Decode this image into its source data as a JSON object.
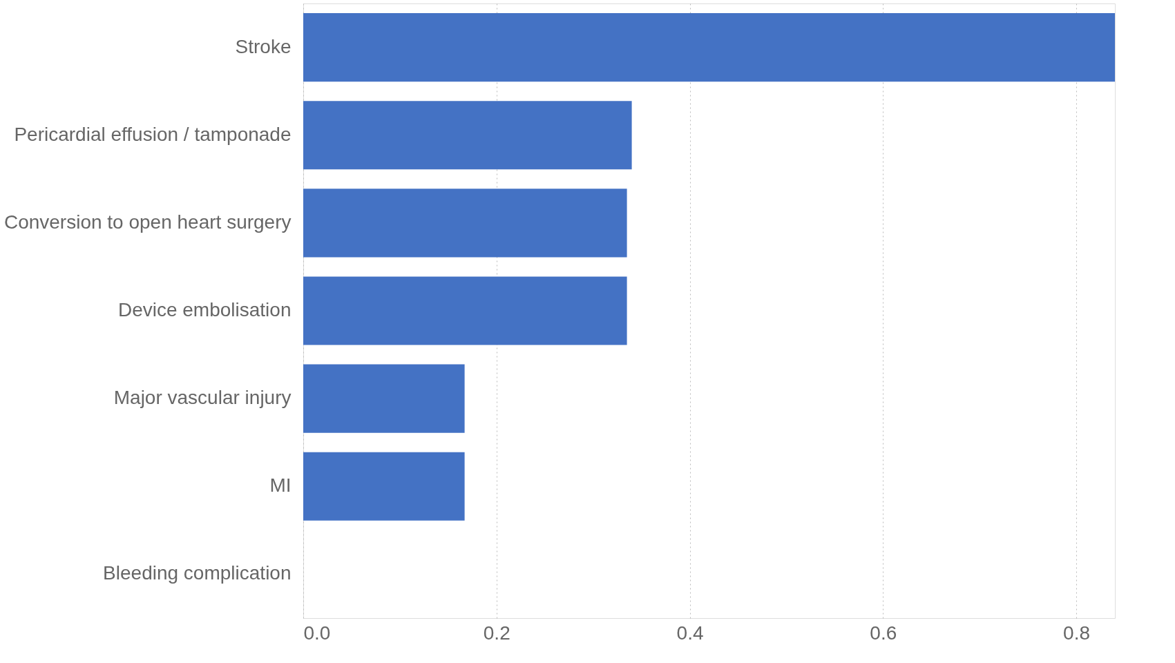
{
  "chart_data": {
    "type": "bar",
    "orientation": "horizontal",
    "categories": [
      "Stroke",
      "Pericardial effusion / tamponade",
      "Conversion to open heart surgery",
      "Device embolisation",
      "Major vascular injury",
      "MI",
      "Bleeding complication"
    ],
    "values": [
      0.84,
      0.34,
      0.335,
      0.335,
      0.167,
      0.167,
      0
    ],
    "color": "#4472c4",
    "xlim": [
      0,
      0.84
    ],
    "xticks": [
      {
        "value": 0,
        "label": "0.0"
      },
      0.2,
      0.4,
      0.6,
      0.8
    ],
    "grid": "x"
  }
}
